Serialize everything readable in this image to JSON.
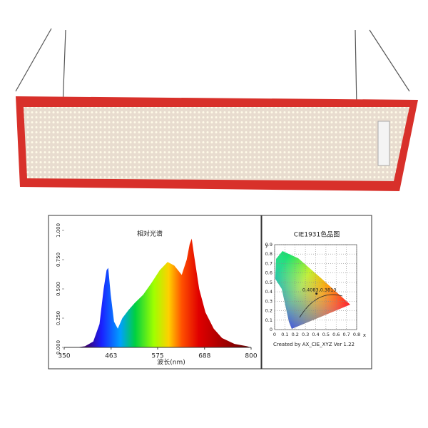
{
  "chart_data": [
    {
      "type": "area",
      "title": "相对光谱",
      "x_label": "波长(nm)",
      "x": [
        380,
        400,
        420,
        435,
        445,
        452,
        456,
        462,
        470,
        479,
        490,
        505,
        520,
        540,
        560,
        580,
        599,
        615,
        633,
        645,
        652,
        657,
        663,
        675,
        690,
        710,
        730,
        760,
        790,
        800
      ],
      "values": [
        0,
        0.01,
        0.05,
        0.2,
        0.5,
        0.66,
        0.68,
        0.45,
        0.22,
        0.16,
        0.25,
        0.32,
        0.38,
        0.45,
        0.55,
        0.66,
        0.73,
        0.7,
        0.62,
        0.75,
        0.88,
        0.93,
        0.78,
        0.5,
        0.3,
        0.16,
        0.08,
        0.03,
        0.01,
        0
      ],
      "xlim": [
        350,
        800
      ],
      "xticks": [
        350,
        463,
        575,
        688,
        800
      ],
      "ylim": [
        0,
        1
      ],
      "yticks": [
        {
          "value": 0,
          "label": "0.000"
        },
        {
          "value": 0.25,
          "label": "0.250"
        },
        {
          "value": 0.5,
          "label": "0.500"
        },
        {
          "value": 0.75,
          "label": "0.750"
        },
        {
          "value": 1,
          "label": "1.000"
        }
      ]
    },
    {
      "type": "scatter",
      "title": "CIE1931色品图",
      "x_label": "x",
      "y_label": "y",
      "x": [
        0.4083
      ],
      "values": [
        0.3813
      ],
      "point_label": "0.4083,0.3813",
      "color": "#222222",
      "xlim": [
        0,
        0.8
      ],
      "xticks": [
        0,
        0.1,
        0.2,
        0.3,
        0.4,
        0.5,
        0.6,
        0.7,
        0.8
      ],
      "ylim": [
        0,
        0.9
      ],
      "yticks": [
        0,
        0.1,
        0.2,
        0.3,
        0.4,
        0.5,
        0.6,
        0.7,
        0.8,
        0.9
      ],
      "grid": true,
      "footer": "Created by AX_CIE_XYZ Ver 1.22"
    }
  ]
}
